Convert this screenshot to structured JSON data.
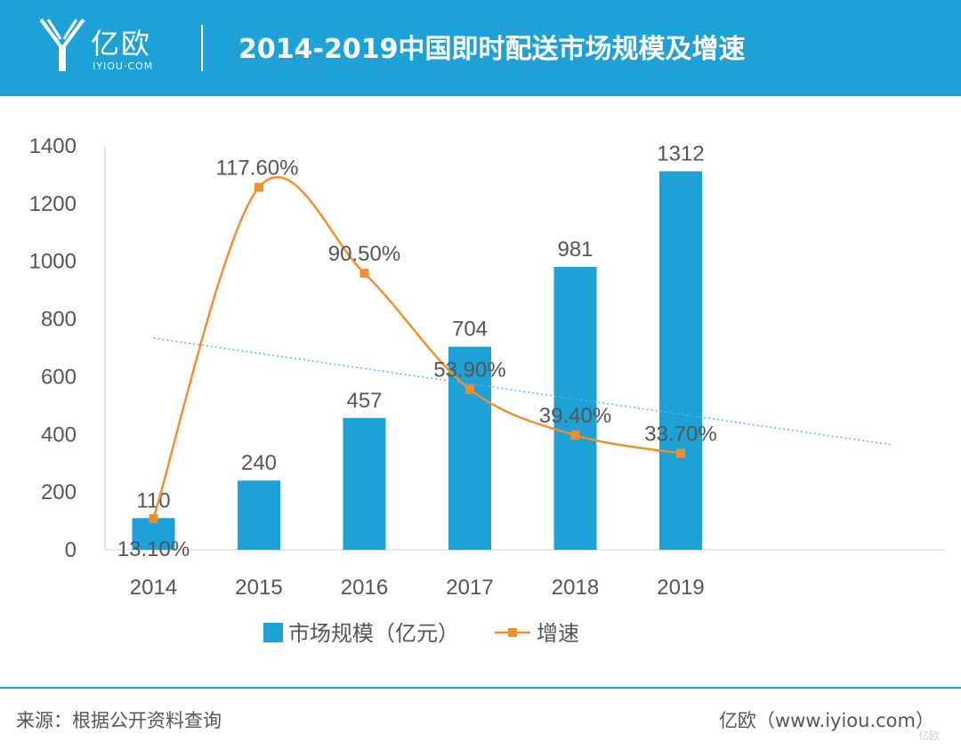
{
  "header": {
    "logo_text": "亿欧",
    "logo_sub": "IYIOU·COM",
    "title": "2014-2019中国即时配送市场规模及增速"
  },
  "colors": {
    "bar": "#1da1d6",
    "line": "#f28e2b",
    "trend": "#5bb5e0",
    "header": "#1da1d6"
  },
  "chart_data": {
    "type": "bar",
    "categories": [
      "2014",
      "2015",
      "2016",
      "2017",
      "2018",
      "2019"
    ],
    "series": [
      {
        "name": "市场规模（亿元）",
        "type": "bar",
        "values": [
          110,
          240,
          457,
          704,
          981,
          1312
        ],
        "labels": [
          "110",
          "240",
          "457",
          "704",
          "981",
          "1312"
        ]
      },
      {
        "name": "增速",
        "type": "line",
        "values": [
          13.1,
          117.6,
          90.5,
          53.9,
          39.4,
          33.7
        ],
        "labels": [
          "13.10%",
          "117.60%",
          "90.50%",
          "53.90%",
          "39.40%",
          "33.70%"
        ]
      }
    ],
    "ylim": [
      0,
      1400
    ],
    "yticks": [
      "0",
      "200",
      "400",
      "600",
      "800",
      "1000",
      "1200",
      "1400"
    ],
    "trendline": true,
    "legend": "bottom"
  },
  "footer": {
    "source": "来源：根据公开资料查询",
    "credit": "亿欧（www.iyiou.com）",
    "watermark": "亿欧"
  }
}
